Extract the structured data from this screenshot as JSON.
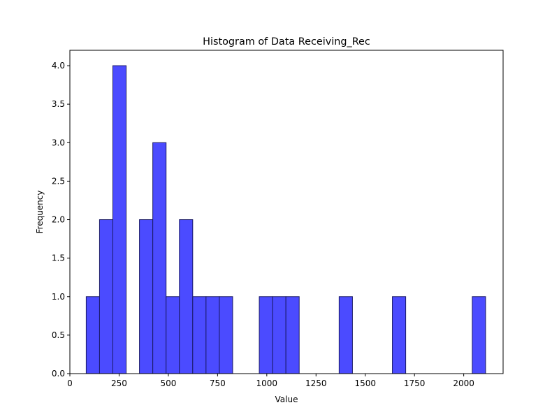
{
  "chart_data": {
    "type": "bar",
    "subtype": "histogram",
    "title": "Histogram of Data Receiving_Rec",
    "xlabel": "Value",
    "ylabel": "Frequency",
    "xlim": [
      0,
      2200
    ],
    "ylim": [
      0,
      4.2
    ],
    "xticks": [
      0,
      250,
      500,
      750,
      1000,
      1250,
      1500,
      1750,
      2000
    ],
    "xtick_labels": [
      "0",
      "250",
      "500",
      "750",
      "1000",
      "1250",
      "1500",
      "1750",
      "2000"
    ],
    "yticks": [
      0.0,
      0.5,
      1.0,
      1.5,
      2.0,
      2.5,
      3.0,
      3.5,
      4.0
    ],
    "ytick_labels": [
      "0.0",
      "0.5",
      "1.0",
      "1.5",
      "2.0",
      "2.5",
      "3.0",
      "3.5",
      "4.0"
    ],
    "bin_edges": [
      83.0,
      150.6,
      218.2,
      285.8,
      353.4,
      421.0,
      488.6,
      556.2,
      623.8,
      691.4,
      759.0,
      826.6,
      894.2,
      961.8,
      1029.4,
      1097.0,
      1164.6,
      1232.2,
      1299.8,
      1367.4,
      1435.0,
      1502.6,
      1570.2,
      1637.8,
      1705.4,
      1773.0,
      1840.6,
      1908.2,
      1975.8,
      2043.4,
      2111.0
    ],
    "counts": [
      1,
      2,
      4,
      0,
      2,
      3,
      1,
      2,
      1,
      1,
      1,
      0,
      0,
      1,
      1,
      1,
      0,
      0,
      0,
      1,
      0,
      0,
      0,
      1,
      0,
      0,
      0,
      0,
      0,
      1
    ],
    "bar_color": "#4b4bff",
    "edge_color": "#1a1a66",
    "grid": false,
    "legend": null
  }
}
